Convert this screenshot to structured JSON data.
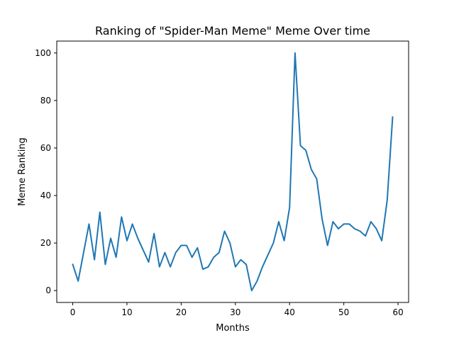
{
  "chart_data": {
    "type": "line",
    "title": "Ranking of \"Spider-Man Meme\" Meme Over time",
    "xlabel": "Months",
    "ylabel": "Meme Ranking",
    "xlim": [
      -2.95,
      61.95
    ],
    "ylim": [
      -5,
      105
    ],
    "xticks": [
      0,
      10,
      20,
      30,
      40,
      50,
      60
    ],
    "yticks": [
      0,
      20,
      40,
      60,
      80,
      100
    ],
    "grid": false,
    "legend": "none",
    "series": [
      {
        "color": "#1f77b4",
        "x": [
          0,
          1,
          2,
          3,
          4,
          5,
          6,
          7,
          8,
          9,
          10,
          11,
          12,
          13,
          14,
          15,
          16,
          17,
          18,
          19,
          20,
          21,
          22,
          23,
          24,
          25,
          26,
          27,
          28,
          29,
          30,
          31,
          32,
          33,
          34,
          35,
          36,
          37,
          38,
          39,
          40,
          41,
          42,
          43,
          44,
          45,
          46,
          47,
          48,
          49,
          50,
          51,
          52,
          53,
          54,
          55,
          56,
          57,
          58,
          59
        ],
        "values": [
          11,
          4,
          16,
          28,
          13,
          33,
          11,
          22,
          14,
          31,
          21,
          28,
          22,
          17,
          12,
          24,
          10,
          16,
          10,
          16,
          19,
          19,
          14,
          18,
          9,
          10,
          14,
          16,
          25,
          20,
          10,
          13,
          11,
          0,
          4,
          10,
          15,
          20,
          29,
          21,
          35,
          100,
          61,
          59,
          51,
          47,
          30,
          19,
          29,
          26,
          28,
          28,
          26,
          25,
          23,
          29,
          26,
          21,
          38,
          73
        ]
      }
    ]
  }
}
